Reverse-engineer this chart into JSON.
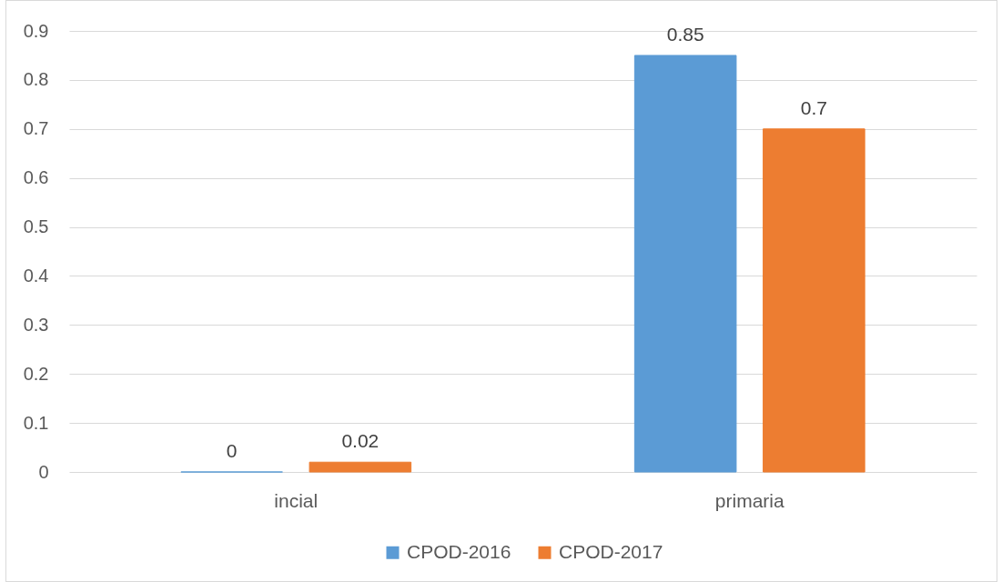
{
  "chart_data": {
    "type": "bar",
    "categories": [
      "incial",
      "primaria"
    ],
    "series": [
      {
        "name": "CPOD-2016",
        "color": "#5b9bd5",
        "values": [
          0,
          0.85
        ]
      },
      {
        "name": "CPOD-2017",
        "color": "#ed7d31",
        "values": [
          0.02,
          0.7
        ]
      }
    ],
    "ylim": [
      0,
      0.9
    ],
    "yticks": [
      0,
      0.1,
      0.2,
      0.3,
      0.4,
      0.5,
      0.6,
      0.7,
      0.8,
      0.9
    ],
    "grid": "y",
    "legend": "bottom",
    "data_labels": true
  }
}
